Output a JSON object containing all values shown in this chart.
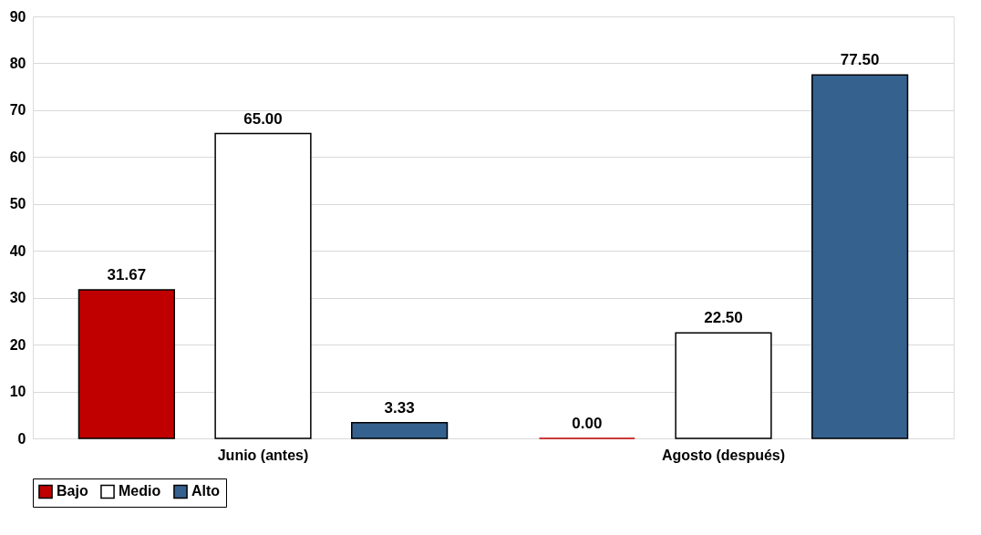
{
  "chart_data": {
    "type": "bar",
    "categories": [
      "Junio (antes)",
      "Agosto (después)"
    ],
    "series": [
      {
        "name": "Bajo",
        "color": "#c00000",
        "values": [
          31.67,
          0.0
        ],
        "value_labels": [
          "31.67",
          "0.00"
        ]
      },
      {
        "name": "Medio",
        "color": "#ffffff",
        "values": [
          65.0,
          22.5
        ],
        "value_labels": [
          "65.00",
          "22.50"
        ]
      },
      {
        "name": "Alto",
        "color": "#35618f",
        "values": [
          3.33,
          77.5
        ],
        "value_labels": [
          "3.33",
          "77.50"
        ]
      }
    ],
    "ylim": [
      0,
      90
    ],
    "yticks": [
      0,
      10,
      20,
      30,
      40,
      50,
      60,
      70,
      80,
      90
    ],
    "grid": "y",
    "legend": "bottom"
  }
}
